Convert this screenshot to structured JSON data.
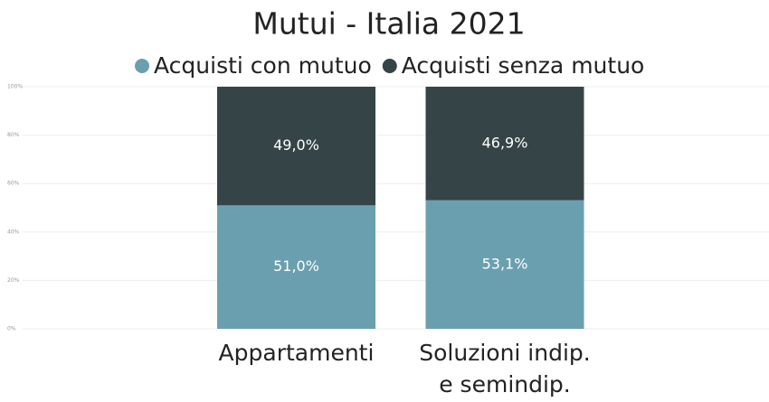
{
  "chart_data": {
    "type": "stacked_bar",
    "title": "Mutui - Italia 2021",
    "categories": [
      "Appartamenti",
      "Soluzioni indip. e semindip."
    ],
    "series": [
      {
        "name": "Acquisti con mutuo",
        "color": "#6a9fb0",
        "values": [
          51.0,
          53.1
        ],
        "value_labels": [
          "51,0%",
          "53,1%"
        ]
      },
      {
        "name": "Acquisti senza mutuo",
        "color": "#354447",
        "values": [
          49.0,
          46.9
        ],
        "value_labels": [
          "49,0%",
          "46,9%"
        ]
      }
    ],
    "ylim": [
      0,
      100
    ],
    "yticks": [
      {
        "value": 0,
        "label": "0%"
      },
      {
        "value": 20,
        "label": "20%"
      },
      {
        "value": 40,
        "label": "40%"
      },
      {
        "value": 60,
        "label": "60%"
      },
      {
        "value": 80,
        "label": "80%"
      },
      {
        "value": 100,
        "label": "100%"
      }
    ],
    "grid": true,
    "legend": "top"
  }
}
